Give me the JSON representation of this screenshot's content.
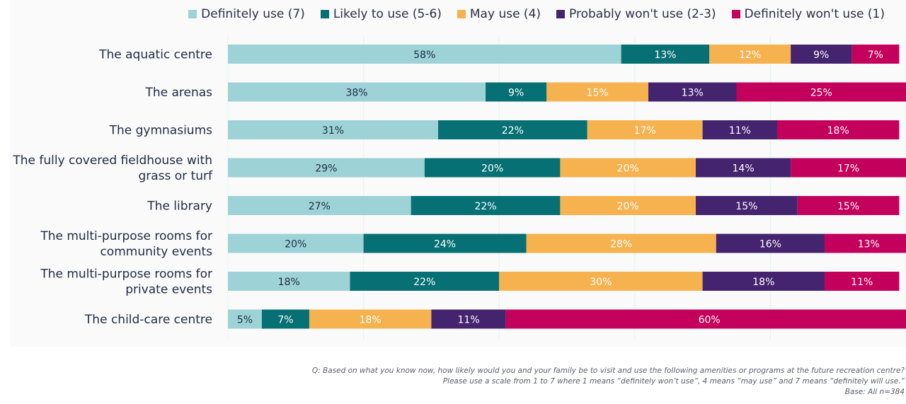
{
  "legend": [
    {
      "label": "Definitely use (7)",
      "color": "#9dd3d6"
    },
    {
      "label": "Likely to use (5-6)",
      "color": "#077074"
    },
    {
      "label": "May use (4)",
      "color": "#f6b24f"
    },
    {
      "label": "Probably won't use (2-3)",
      "color": "#44236f"
    },
    {
      "label": "Definitely won't use (1)",
      "color": "#c3005b"
    }
  ],
  "chart_data": {
    "type": "bar",
    "orientation": "horizontal",
    "stacked": true,
    "categories": [
      "The aquatic centre",
      "The arenas",
      "The gymnasiums",
      "The fully covered fieldhouse with grass or turf",
      "The library",
      "The multi-purpose rooms for community events",
      "The multi-purpose rooms for private events",
      "The child-care centre"
    ],
    "category_lines": [
      [
        "The aquatic centre"
      ],
      [
        "The arenas"
      ],
      [
        "The gymnasiums"
      ],
      [
        "The fully covered fieldhouse with",
        "grass or turf"
      ],
      [
        "The library"
      ],
      [
        "The multi-purpose rooms for",
        "community events"
      ],
      [
        "The multi-purpose rooms for",
        "private events"
      ],
      [
        "The child-care centre"
      ]
    ],
    "series": [
      {
        "name": "Definitely use (7)",
        "values": [
          58,
          38,
          31,
          29,
          27,
          20,
          18,
          5
        ],
        "labels": [
          "58%",
          "38%",
          "31%",
          "29%",
          "27%",
          "20%",
          "18%",
          "5%"
        ]
      },
      {
        "name": "Likely to use (5-6)",
        "values": [
          13,
          9,
          22,
          20,
          22,
          24,
          22,
          7
        ],
        "labels": [
          "13%",
          "9%",
          "22%",
          "20%",
          "22%",
          "24%",
          "22%",
          "7%"
        ]
      },
      {
        "name": "May use (4)",
        "values": [
          12,
          15,
          17,
          20,
          20,
          28,
          30,
          18
        ],
        "labels": [
          "12%",
          "15%",
          "17%",
          "20%",
          "20%",
          "28%",
          "30%",
          "18%"
        ]
      },
      {
        "name": "Probably won't use (2-3)",
        "values": [
          9,
          13,
          11,
          14,
          15,
          16,
          18,
          11
        ],
        "labels": [
          "9%",
          "13%",
          "11%",
          "14%",
          "15%",
          "16%",
          "18%",
          "11%"
        ]
      },
      {
        "name": "Definitely won't use (1)",
        "values": [
          7,
          25,
          18,
          17,
          15,
          13,
          11,
          60
        ],
        "labels": [
          "7%",
          "25%",
          "18%",
          "17%",
          "15%",
          "13%",
          "11%",
          "60%"
        ]
      }
    ],
    "xlim": [
      0,
      100
    ],
    "grid": true,
    "legend_position": "top"
  },
  "footnote": {
    "line1": "Q: Based on what you know now, how likely would you and your family be to visit and use the following amenities or programs at the future recreation centre?",
    "line2": "Please use a scale from 1 to 7 where 1 means “definitely won’t use”, 4 means “may use” and 7 means “definitely will use.”",
    "line3": "Base: All n=384"
  }
}
